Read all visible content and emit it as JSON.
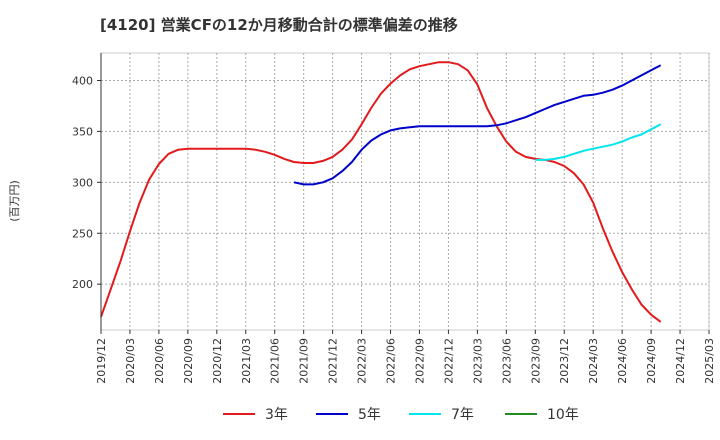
{
  "chart_data": {
    "type": "line",
    "title": "[4120]  営業CFの12か月移動合計の標準偏差の推移",
    "ylabel": "(百万円)",
    "xlabel": "",
    "ylim": [
      155,
      427
    ],
    "xlim": [
      "2019/12",
      "2025/03"
    ],
    "y_ticks": [
      200,
      250,
      300,
      350,
      400
    ],
    "x_ticks": [
      "2019/12",
      "2020/03",
      "2020/06",
      "2020/09",
      "2020/12",
      "2021/03",
      "2021/06",
      "2021/09",
      "2021/12",
      "2022/03",
      "2022/06",
      "2022/09",
      "2022/12",
      "2023/03",
      "2023/06",
      "2023/09",
      "2023/12",
      "2024/03",
      "2024/06",
      "2024/09",
      "2024/12",
      "2025/03"
    ],
    "grid": true,
    "legend_position": "bottom",
    "series": [
      {
        "name": "3年",
        "color": "#e31a1c",
        "points": [
          [
            "2019/12",
            168
          ],
          [
            "2020/01",
            195
          ],
          [
            "2020/02",
            222
          ],
          [
            "2020/03",
            252
          ],
          [
            "2020/04",
            280
          ],
          [
            "2020/05",
            303
          ],
          [
            "2020/06",
            318
          ],
          [
            "2020/07",
            328
          ],
          [
            "2020/08",
            332
          ],
          [
            "2020/09",
            333
          ],
          [
            "2020/10",
            333
          ],
          [
            "2020/11",
            333
          ],
          [
            "2020/12",
            333
          ],
          [
            "2021/01",
            333
          ],
          [
            "2021/02",
            333
          ],
          [
            "2021/03",
            333
          ],
          [
            "2021/04",
            332
          ],
          [
            "2021/05",
            330
          ],
          [
            "2021/06",
            327
          ],
          [
            "2021/07",
            323
          ],
          [
            "2021/08",
            320
          ],
          [
            "2021/09",
            319
          ],
          [
            "2021/10",
            319
          ],
          [
            "2021/11",
            321
          ],
          [
            "2021/12",
            325
          ],
          [
            "2022/01",
            332
          ],
          [
            "2022/02",
            342
          ],
          [
            "2022/03",
            357
          ],
          [
            "2022/04",
            373
          ],
          [
            "2022/05",
            387
          ],
          [
            "2022/06",
            397
          ],
          [
            "2022/07",
            405
          ],
          [
            "2022/08",
            411
          ],
          [
            "2022/09",
            414
          ],
          [
            "2022/10",
            416
          ],
          [
            "2022/11",
            418
          ],
          [
            "2022/12",
            418
          ],
          [
            "2023/01",
            416
          ],
          [
            "2023/02",
            410
          ],
          [
            "2023/03",
            396
          ],
          [
            "2023/04",
            373
          ],
          [
            "2023/05",
            355
          ],
          [
            "2023/06",
            340
          ],
          [
            "2023/07",
            330
          ],
          [
            "2023/08",
            325
          ],
          [
            "2023/09",
            323
          ],
          [
            "2023/10",
            322
          ],
          [
            "2023/11",
            320
          ],
          [
            "2023/12",
            316
          ],
          [
            "2024/01",
            309
          ],
          [
            "2024/02",
            298
          ],
          [
            "2024/03",
            280
          ],
          [
            "2024/04",
            255
          ],
          [
            "2024/05",
            232
          ],
          [
            "2024/06",
            212
          ],
          [
            "2024/07",
            195
          ],
          [
            "2024/08",
            180
          ],
          [
            "2024/09",
            170
          ],
          [
            "2024/10",
            163
          ]
        ]
      },
      {
        "name": "5年",
        "color": "#0000cc",
        "points": [
          [
            "2021/08",
            300
          ],
          [
            "2021/09",
            298
          ],
          [
            "2021/10",
            298
          ],
          [
            "2021/11",
            300
          ],
          [
            "2021/12",
            304
          ],
          [
            "2022/01",
            311
          ],
          [
            "2022/02",
            320
          ],
          [
            "2022/03",
            332
          ],
          [
            "2022/04",
            341
          ],
          [
            "2022/05",
            347
          ],
          [
            "2022/06",
            351
          ],
          [
            "2022/07",
            353
          ],
          [
            "2022/08",
            354
          ],
          [
            "2022/09",
            355
          ],
          [
            "2022/10",
            355
          ],
          [
            "2022/11",
            355
          ],
          [
            "2022/12",
            355
          ],
          [
            "2023/01",
            355
          ],
          [
            "2023/02",
            355
          ],
          [
            "2023/03",
            355
          ],
          [
            "2023/04",
            355
          ],
          [
            "2023/05",
            356
          ],
          [
            "2023/06",
            358
          ],
          [
            "2023/07",
            361
          ],
          [
            "2023/08",
            364
          ],
          [
            "2023/09",
            368
          ],
          [
            "2023/10",
            372
          ],
          [
            "2023/11",
            376
          ],
          [
            "2023/12",
            379
          ],
          [
            "2024/01",
            382
          ],
          [
            "2024/02",
            385
          ],
          [
            "2024/03",
            386
          ],
          [
            "2024/04",
            388
          ],
          [
            "2024/05",
            391
          ],
          [
            "2024/06",
            395
          ],
          [
            "2024/07",
            400
          ],
          [
            "2024/08",
            405
          ],
          [
            "2024/09",
            410
          ],
          [
            "2024/10",
            415
          ]
        ]
      },
      {
        "name": "7年",
        "color": "#00e5ee",
        "points": [
          [
            "2023/09",
            322
          ],
          [
            "2023/10",
            322
          ],
          [
            "2023/11",
            323
          ],
          [
            "2023/12",
            325
          ],
          [
            "2024/01",
            328
          ],
          [
            "2024/02",
            331
          ],
          [
            "2024/03",
            333
          ],
          [
            "2024/04",
            335
          ],
          [
            "2024/05",
            337
          ],
          [
            "2024/06",
            340
          ],
          [
            "2024/07",
            344
          ],
          [
            "2024/08",
            347
          ],
          [
            "2024/09",
            352
          ],
          [
            "2024/10",
            357
          ]
        ]
      },
      {
        "name": "10年",
        "color": "#228b22",
        "points": []
      }
    ]
  }
}
